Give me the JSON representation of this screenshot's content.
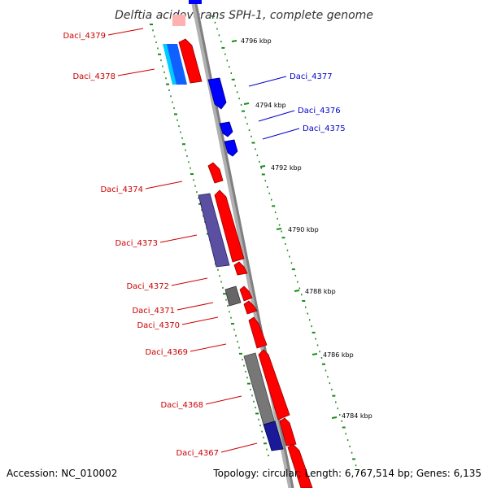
{
  "title": "Delftia acidovorans SPH-1, complete genome",
  "footer": {
    "accession": "Accession: NC_010002",
    "topology": "Topology: circular; Length: 6,767,514 bp; Genes: 6,135"
  },
  "colors": {
    "forward": "#ff0000",
    "reverse": "#0000ff",
    "cds_forward": "#ff0000",
    "cds_reverse": "#5a4fa0",
    "gc_skew": "#1a8a1a",
    "backbone": "#888888",
    "label_forward": "#cc0000",
    "label_reverse": "#0000cc"
  },
  "kbp_ticks": [
    "4796 kbp",
    "4794 kbp",
    "4792 kbp",
    "4790 kbp",
    "4788 kbp",
    "4786 kbp",
    "4784 kbp"
  ],
  "forward_labels": [
    "Daci_4379",
    "Daci_4378",
    "Daci_4374",
    "Daci_4373",
    "Daci_4372",
    "Daci_4371",
    "Daci_4370",
    "Daci_4369",
    "Daci_4368",
    "Daci_4367"
  ],
  "reverse_labels": [
    "Daci_4377",
    "Daci_4376",
    "Daci_4375"
  ]
}
